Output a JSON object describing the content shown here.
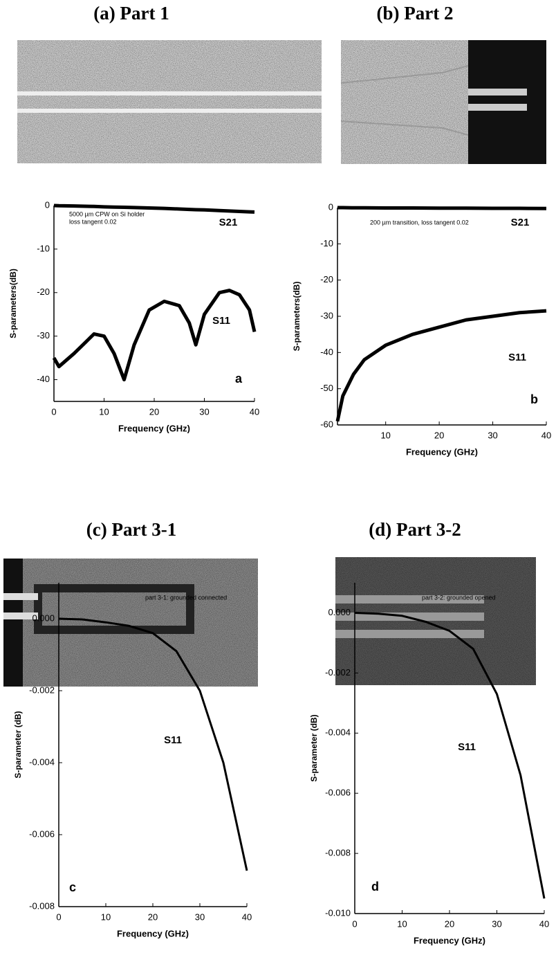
{
  "chart_data": [
    {
      "type": "line",
      "title": "(a) Part 1",
      "xlabel": "Frequency (GHz)",
      "ylabel": "S-parameters(dB)",
      "annotations": [
        "5000 µm CPW on Si holder",
        "loss tangent 0.02"
      ],
      "panel_label": "a",
      "xlim": [
        0,
        40
      ],
      "ylim": [
        -45,
        0
      ],
      "xticks": [
        0,
        10,
        20,
        30,
        40
      ],
      "yticks": [
        0,
        -10,
        -20,
        -30,
        -40
      ],
      "x": [
        0,
        1,
        4,
        8,
        10,
        12,
        14,
        16,
        19,
        22,
        25,
        27,
        28.3,
        30,
        33,
        35,
        37,
        39,
        40
      ],
      "series": [
        {
          "name": "S21",
          "color": "#000000",
          "values": [
            0,
            -0.05,
            -0.1,
            -0.2,
            -0.3,
            -0.35,
            -0.4,
            -0.45,
            -0.55,
            -0.65,
            -0.8,
            -0.9,
            -0.95,
            -1.0,
            -1.15,
            -1.25,
            -1.35,
            -1.45,
            -1.5
          ]
        },
        {
          "name": "S11",
          "color": "#000000",
          "values": [
            -35,
            -37,
            -34,
            -29.5,
            -30,
            -34,
            -40,
            -32,
            -24,
            -22,
            -23,
            -27,
            -32,
            -25,
            -20,
            -19.5,
            -20.5,
            -24,
            -29
          ]
        }
      ]
    },
    {
      "type": "line",
      "title": "(b) Part 2",
      "xlabel": "Frequency (GHz)",
      "ylabel": "S-parameters(dB)",
      "annotations": [
        "200 µm transition, loss tangent 0.02"
      ],
      "panel_label": "b",
      "xlim": [
        1,
        40
      ],
      "ylim": [
        -60,
        0
      ],
      "xticks": [
        10,
        20,
        30,
        40
      ],
      "yticks": [
        0,
        -10,
        -20,
        -30,
        -40,
        -50,
        -60
      ],
      "x": [
        1,
        2,
        4,
        6,
        10,
        15,
        20,
        25,
        30,
        35,
        40
      ],
      "series": [
        {
          "name": "S21",
          "color": "#000000",
          "values": [
            0,
            0,
            -0.05,
            -0.05,
            -0.1,
            -0.1,
            -0.15,
            -0.15,
            -0.2,
            -0.2,
            -0.25
          ]
        },
        {
          "name": "S11",
          "color": "#000000",
          "values": [
            -59,
            -52,
            -46,
            -42,
            -38,
            -35,
            -33,
            -31,
            -30,
            -29,
            -28.5
          ]
        }
      ]
    },
    {
      "type": "line",
      "title": "(c) Part 3-1",
      "xlabel": "Frequency (GHz)",
      "ylabel": "S-parameter (dB)",
      "annotations": [
        "part 3-1: grounded connected"
      ],
      "panel_label": "c",
      "xlim": [
        0,
        40
      ],
      "ylim": [
        -0.008,
        0.001
      ],
      "xticks": [
        0,
        10,
        20,
        30,
        40
      ],
      "yticks": [
        {
          "value": 0,
          "label": "0.000"
        },
        {
          "value": -0.002,
          "label": "-0.002"
        },
        {
          "value": -0.004,
          "label": "-0.004"
        },
        {
          "value": -0.006,
          "label": "-0.006"
        },
        {
          "value": -0.008,
          "label": "-0.008"
        }
      ],
      "x": [
        0,
        5,
        10,
        15,
        20,
        25,
        30,
        35,
        40
      ],
      "series": [
        {
          "name": "S11",
          "color": "#000000",
          "values": [
            0,
            -2e-05,
            -0.0001,
            -0.0002,
            -0.0004,
            -0.0009,
            -0.002,
            -0.004,
            -0.007
          ]
        }
      ]
    },
    {
      "type": "line",
      "title": "(d) Part 3-2",
      "xlabel": "Frequency (GHz)",
      "ylabel": "S-parameter (dB)",
      "annotations": [
        "part 3-2: grounded opened"
      ],
      "panel_label": "d",
      "xlim": [
        0,
        40
      ],
      "ylim": [
        -0.01,
        0.001
      ],
      "xticks": [
        0,
        10,
        20,
        30,
        40
      ],
      "yticks": [
        {
          "value": 0,
          "label": "0.000"
        },
        {
          "value": -0.002,
          "label": "-0.002"
        },
        {
          "value": -0.004,
          "label": "-0.004"
        },
        {
          "value": -0.006,
          "label": "-0.006"
        },
        {
          "value": -0.008,
          "label": "-0.008"
        },
        {
          "value": -0.01,
          "label": "-0.010"
        }
      ],
      "x": [
        0,
        5,
        10,
        15,
        20,
        25,
        30,
        35,
        40
      ],
      "series": [
        {
          "name": "S11",
          "color": "#000000",
          "values": [
            0,
            -3e-05,
            -0.0001,
            -0.0003,
            -0.0006,
            -0.0012,
            -0.0027,
            -0.0054,
            -0.0095
          ]
        }
      ]
    }
  ]
}
